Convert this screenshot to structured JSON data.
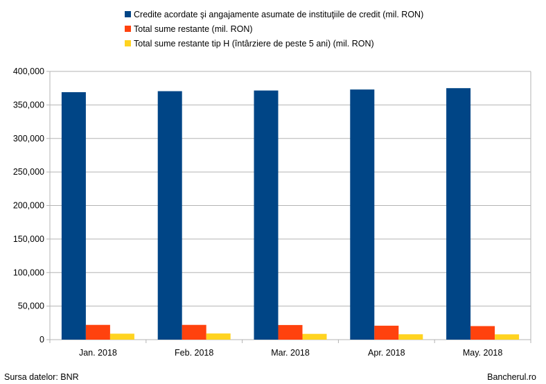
{
  "chart_data": {
    "type": "bar",
    "categories": [
      "Jan. 2018",
      "Feb. 2018",
      "Mar. 2018",
      "Apr. 2018",
      "May. 2018"
    ],
    "series": [
      {
        "name": "Credite acordate şi angajamente asumate de instituţiile de credit (mil. RON)",
        "color": "#004586",
        "values": [
          369000,
          370500,
          371500,
          373000,
          375000
        ]
      },
      {
        "name": "Total sume restante (mil. RON)",
        "color": "#ff420e",
        "values": [
          22000,
          22000,
          21800,
          20800,
          20200
        ]
      },
      {
        "name": "Total sume restante tip H (întârziere de peste 5 ani) (mil. RON)",
        "color": "#ffd320",
        "values": [
          8900,
          9200,
          8600,
          8000,
          7900
        ]
      }
    ],
    "ylim": [
      0,
      400000
    ],
    "yticks": [
      "0",
      "50,000",
      "100,000",
      "150,000",
      "200,000",
      "250,000",
      "300,000",
      "350,000",
      "400,000"
    ],
    "grid": true,
    "legend_position": "top-center",
    "title": "",
    "xlabel": "",
    "ylabel": ""
  },
  "footer": {
    "source": "Sursa datelor: BNR",
    "brand": "Bancherul.ro"
  }
}
